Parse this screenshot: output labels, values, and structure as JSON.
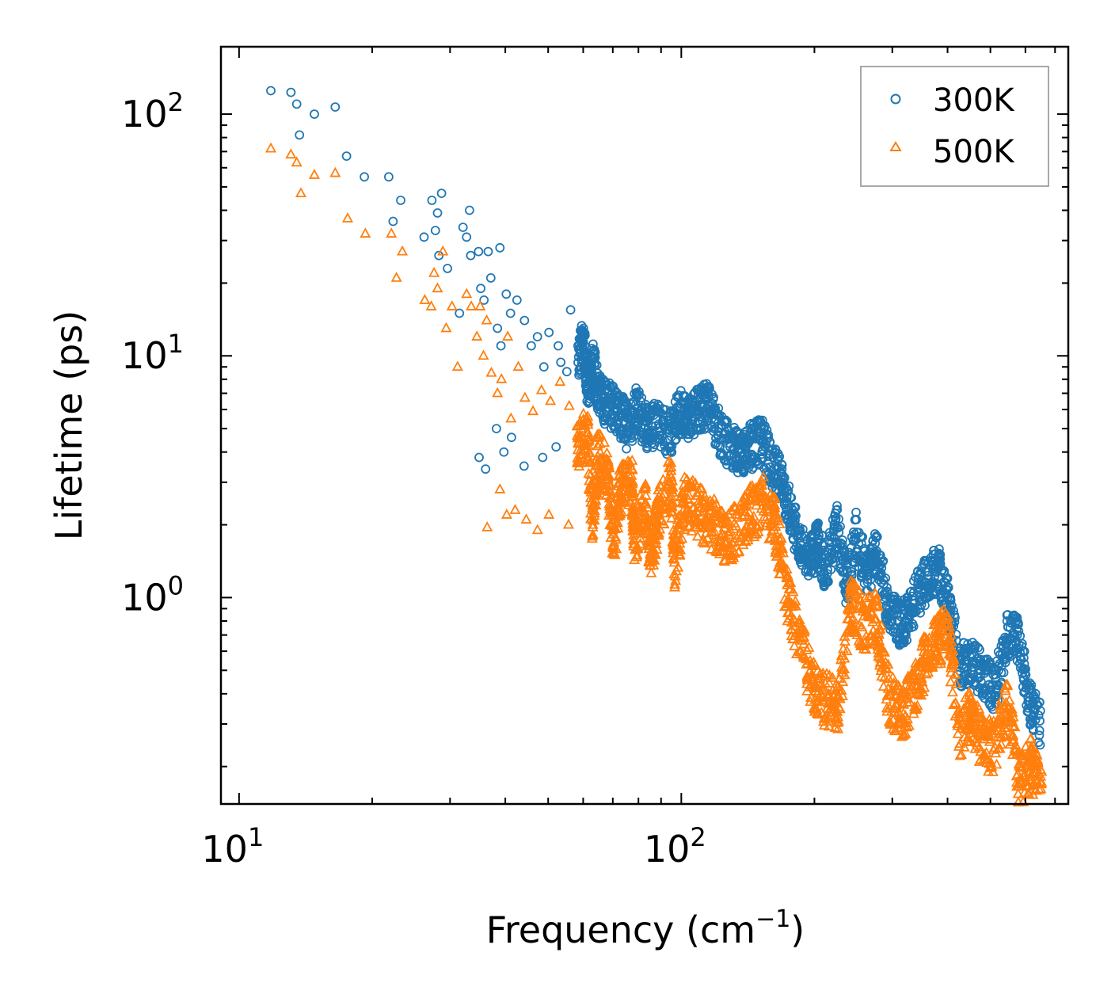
{
  "chart_data": {
    "type": "scatter",
    "xlabel": "Frequency (cm",
    "xlabel_sup": "−1",
    "xlabel_close": ")",
    "ylabel": "Lifetime (ps)",
    "xscale": "log",
    "yscale": "log",
    "xlim": [
      9.1,
      750
    ],
    "ylim": [
      0.14,
      190
    ],
    "x_tick_labels": [
      {
        "value": 10,
        "base": "10",
        "exp": "1"
      },
      {
        "value": 100,
        "base": "10",
        "exp": "2"
      }
    ],
    "y_tick_labels": [
      {
        "value": 1,
        "base": "10",
        "exp": "0"
      },
      {
        "value": 10,
        "base": "10",
        "exp": "1"
      },
      {
        "value": 100,
        "base": "10",
        "exp": "2"
      }
    ],
    "legend_position": "top-right",
    "series": [
      {
        "name": "300K",
        "color": "#1f77b4",
        "marker": "circle",
        "points": [
          [
            11.8,
            125
          ],
          [
            13.1,
            123
          ],
          [
            13.5,
            110
          ],
          [
            14.8,
            100
          ],
          [
            16.5,
            107
          ],
          [
            13.7,
            82
          ],
          [
            17.5,
            67
          ],
          [
            19.2,
            55
          ],
          [
            21.8,
            55
          ],
          [
            22.3,
            36
          ],
          [
            23.2,
            44
          ],
          [
            26.2,
            31
          ],
          [
            27.3,
            44
          ],
          [
            28.1,
            39
          ],
          [
            28.7,
            47
          ],
          [
            27.8,
            33
          ],
          [
            28.3,
            26
          ],
          [
            29.6,
            23
          ],
          [
            31.5,
            15
          ],
          [
            32.1,
            34
          ],
          [
            32.7,
            31
          ],
          [
            33.2,
            40
          ],
          [
            33.4,
            26
          ],
          [
            34.8,
            27
          ],
          [
            35.2,
            19
          ],
          [
            36.6,
            27
          ],
          [
            35.8,
            17
          ],
          [
            37.1,
            21
          ],
          [
            38.9,
            28
          ],
          [
            38.4,
            13
          ],
          [
            39.1,
            11
          ],
          [
            40.2,
            18
          ],
          [
            41.1,
            15
          ],
          [
            42.5,
            17
          ],
          [
            44.2,
            14
          ],
          [
            45.8,
            11
          ],
          [
            47.3,
            12
          ],
          [
            48.9,
            9
          ],
          [
            50.2,
            12.5
          ],
          [
            52.7,
            11
          ],
          [
            53.4,
            9.4
          ],
          [
            55.1,
            8.6
          ],
          [
            56.2,
            15.5
          ],
          [
            58.4,
            11
          ],
          [
            60.1,
            13
          ],
          [
            61.5,
            8.5
          ],
          [
            63.2,
            10.5
          ],
          [
            65.3,
            7.8
          ],
          [
            68.2,
            7.2
          ],
          [
            71.8,
            6.8
          ],
          [
            75.6,
            5.8
          ],
          [
            79.3,
            6.9
          ],
          [
            83.5,
            5.7
          ],
          [
            88.1,
            5.9
          ],
          [
            94.2,
            5.4
          ],
          [
            98.7,
            6.7
          ],
          [
            103.5,
            6.3
          ],
          [
            109.2,
            6.9
          ],
          [
            114.8,
            7.1
          ],
          [
            120.3,
            5.8
          ],
          [
            128.1,
            4.9
          ],
          [
            135.6,
            4.4
          ],
          [
            143.2,
            4.8
          ],
          [
            151.7,
            5.1
          ],
          [
            160.3,
            4.1
          ],
          [
            168.9,
            3.4
          ],
          [
            176.5,
            2.6
          ],
          [
            185.2,
            1.9
          ],
          [
            195.7,
            1.7
          ],
          [
            203.4,
            1.9
          ],
          [
            212.6,
            1.5
          ],
          [
            224.3,
            2.3
          ],
          [
            236.2,
            1.3
          ],
          [
            248.7,
            2.1
          ],
          [
            262.5,
            1.4
          ],
          [
            276.3,
            1.8
          ],
          [
            291.8,
            1.1
          ],
          [
            308.5,
            0.9
          ],
          [
            324.2,
            0.93
          ],
          [
            343.7,
            1.2
          ],
          [
            362.4,
            1.4
          ],
          [
            381.6,
            1.5
          ],
          [
            401.9,
            1.1
          ],
          [
            425.3,
            0.6
          ],
          [
            452.6,
            0.62
          ],
          [
            482.4,
            0.55
          ],
          [
            512.8,
            0.48
          ],
          [
            545.2,
            0.8
          ],
          [
            578.3,
            0.78
          ],
          [
            612.1,
            0.43
          ],
          [
            648.7,
            0.34
          ],
          [
            38.2,
            5
          ],
          [
            39.7,
            4
          ],
          [
            41.3,
            4.6
          ],
          [
            44.1,
            3.5
          ],
          [
            48.6,
            3.8
          ],
          [
            52.1,
            4.2
          ],
          [
            36.1,
            3.4
          ],
          [
            34.9,
            3.8
          ]
        ]
      },
      {
        "name": "500K",
        "color": "#ff7f0e",
        "marker": "triangle",
        "points": [
          [
            11.8,
            72
          ],
          [
            13.1,
            68
          ],
          [
            13.5,
            63
          ],
          [
            14.8,
            56
          ],
          [
            16.5,
            57
          ],
          [
            13.8,
            47
          ],
          [
            17.6,
            37
          ],
          [
            19.3,
            32
          ],
          [
            22.1,
            32
          ],
          [
            23.4,
            27
          ],
          [
            22.7,
            21
          ],
          [
            26.3,
            17
          ],
          [
            27.2,
            16
          ],
          [
            28.1,
            19
          ],
          [
            28.9,
            27
          ],
          [
            27.6,
            22
          ],
          [
            29.4,
            13
          ],
          [
            30.3,
            16
          ],
          [
            31.2,
            9
          ],
          [
            32.7,
            18
          ],
          [
            33.5,
            16
          ],
          [
            34.5,
            12
          ],
          [
            35.1,
            16
          ],
          [
            36.3,
            14
          ],
          [
            35.7,
            10
          ],
          [
            37.2,
            8.5
          ],
          [
            38.4,
            7
          ],
          [
            39.2,
            8
          ],
          [
            40.5,
            12
          ],
          [
            41.2,
            5.5
          ],
          [
            42.8,
            9
          ],
          [
            44.3,
            6.7
          ],
          [
            46.2,
            5.9
          ],
          [
            48.3,
            7.2
          ],
          [
            50.6,
            6.5
          ],
          [
            53.2,
            7.8
          ],
          [
            55.8,
            6.2
          ],
          [
            58.1,
            5.1
          ],
          [
            61.4,
            5.3
          ],
          [
            64.7,
            4.6
          ],
          [
            68.2,
            3.7
          ],
          [
            72.6,
            3.2
          ],
          [
            77.4,
            3.4
          ],
          [
            82.9,
            2.8
          ],
          [
            88.6,
            2.5
          ],
          [
            94.8,
            3.6
          ],
          [
            101.3,
            2.9
          ],
          [
            108.7,
            2.7
          ],
          [
            116.5,
            2.4
          ],
          [
            124.8,
            2.1
          ],
          [
            133.6,
            2.2
          ],
          [
            142.9,
            2.6
          ],
          [
            152.4,
            2.9
          ],
          [
            162.8,
            2.4
          ],
          [
            173.5,
            1.2
          ],
          [
            185.3,
            0.78
          ],
          [
            198.1,
            0.52
          ],
          [
            211.7,
            0.44
          ],
          [
            226.4,
            0.43
          ],
          [
            241.9,
            1.1
          ],
          [
            258.6,
            0.9
          ],
          [
            276.1,
            0.96
          ],
          [
            294.7,
            0.46
          ],
          [
            314.2,
            0.38
          ],
          [
            334.8,
            0.47
          ],
          [
            356.3,
            0.65
          ],
          [
            378.6,
            0.79
          ],
          [
            401.2,
            0.83
          ],
          [
            425.7,
            0.32
          ],
          [
            452.1,
            0.38
          ],
          [
            481.5,
            0.29
          ],
          [
            512.7,
            0.28
          ],
          [
            546.3,
            0.43
          ],
          [
            581.4,
            0.2
          ],
          [
            617.2,
            0.24
          ],
          [
            652.8,
            0.19
          ],
          [
            38.9,
            2.8
          ],
          [
            40.3,
            2.2
          ],
          [
            42.1,
            2.3
          ],
          [
            44.6,
            2.1
          ],
          [
            47.3,
            1.9
          ],
          [
            36.4,
            1.95
          ],
          [
            50.2,
            2.2
          ],
          [
            55.6,
            2.0
          ],
          [
            63.1,
            2.3
          ],
          [
            70.4,
            1.95
          ],
          [
            78.2,
            2.05
          ],
          [
            85.3,
            1.75
          ],
          [
            96.7,
            1.6
          ]
        ]
      }
    ]
  }
}
